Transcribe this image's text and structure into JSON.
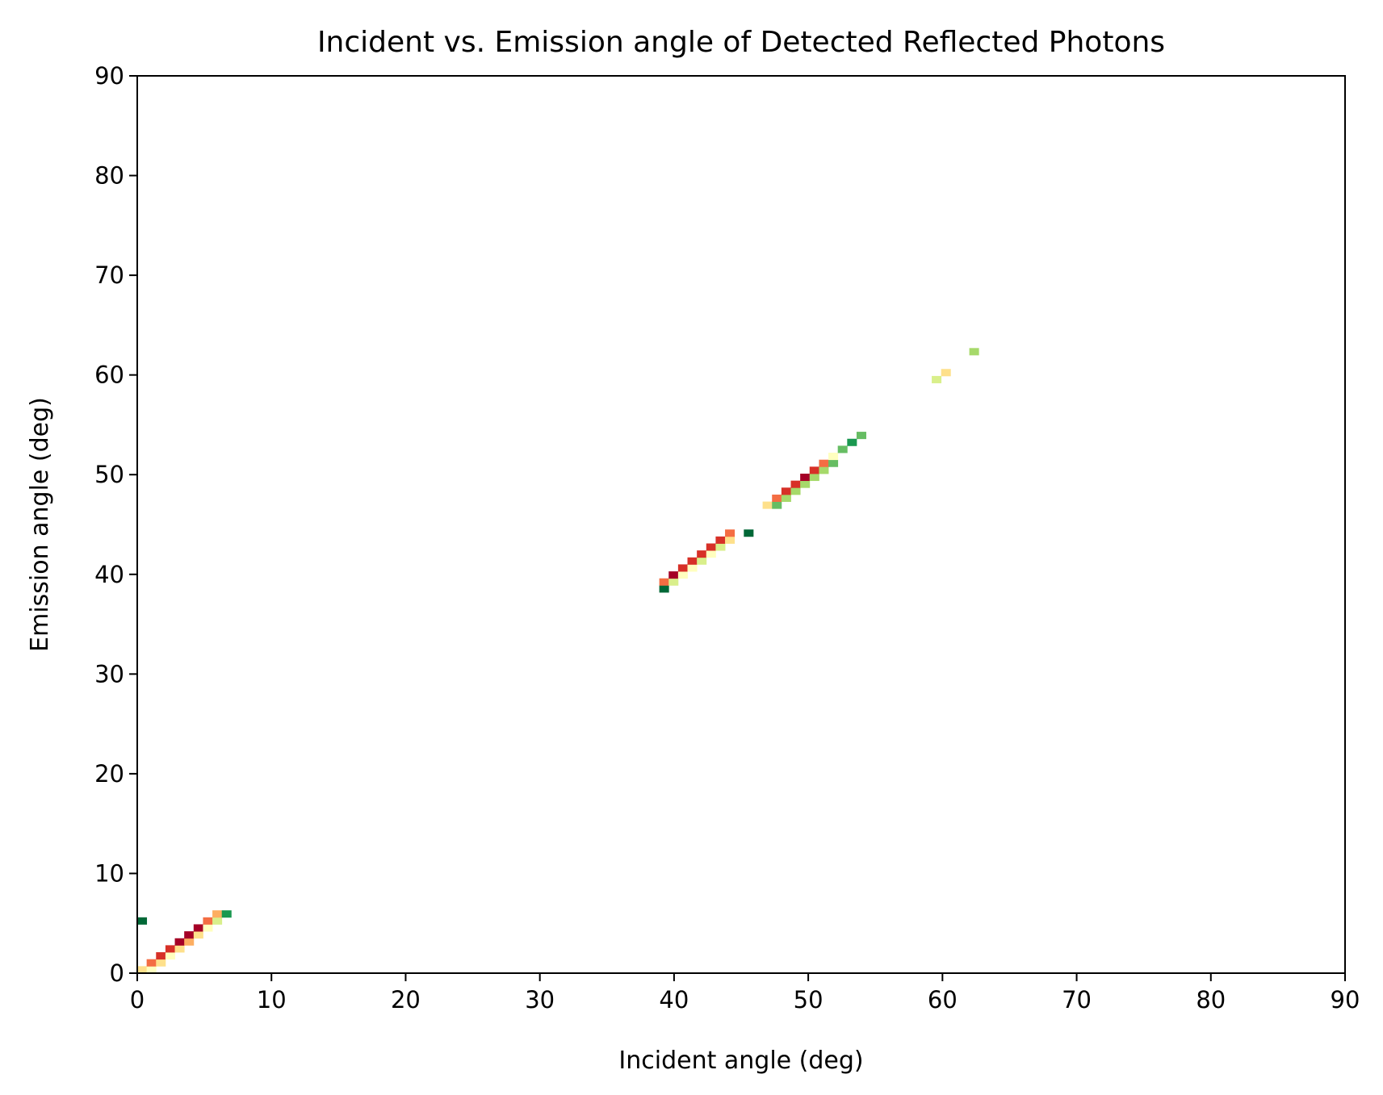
{
  "chart_data": {
    "type": "heatmap",
    "title": "Incident vs. Emission angle of Detected Reflected Photons",
    "xlabel": "Incident angle (deg)",
    "ylabel": "Emission angle (deg)",
    "xlim": [
      0,
      90
    ],
    "ylim": [
      0,
      90
    ],
    "xticks": [
      "0",
      "10",
      "20",
      "30",
      "40",
      "50",
      "60",
      "70",
      "80",
      "90"
    ],
    "yticks": [
      "0",
      "10",
      "20",
      "30",
      "40",
      "50",
      "60",
      "70",
      "80",
      "90"
    ],
    "grid": false,
    "colormap": "RdYlGn",
    "colors": {
      "background": "#ffffff",
      "axis": "#000000"
    },
    "bin_width": 0.7,
    "bins": [
      {
        "x": 0.0,
        "y": 0.0,
        "c": "#fee08b"
      },
      {
        "x": 0.7,
        "y": 0.0,
        "c": "#ffffbf"
      },
      {
        "x": 0.7,
        "y": 0.7,
        "c": "#f46d43"
      },
      {
        "x": 1.4,
        "y": 0.7,
        "c": "#fee08b"
      },
      {
        "x": 1.4,
        "y": 1.4,
        "c": "#d73027"
      },
      {
        "x": 2.1,
        "y": 1.4,
        "c": "#ffffbf"
      },
      {
        "x": 2.1,
        "y": 2.1,
        "c": "#d73027"
      },
      {
        "x": 2.8,
        "y": 2.1,
        "c": "#fee08b"
      },
      {
        "x": 2.8,
        "y": 2.8,
        "c": "#a50026"
      },
      {
        "x": 3.5,
        "y": 2.8,
        "c": "#fdae61"
      },
      {
        "x": 3.5,
        "y": 3.5,
        "c": "#a50026"
      },
      {
        "x": 4.2,
        "y": 3.5,
        "c": "#fee08b"
      },
      {
        "x": 4.2,
        "y": 4.2,
        "c": "#a50026"
      },
      {
        "x": 4.9,
        "y": 4.2,
        "c": "#ffffbf"
      },
      {
        "x": 4.9,
        "y": 4.9,
        "c": "#f46d43"
      },
      {
        "x": 5.6,
        "y": 4.9,
        "c": "#d9ef8b"
      },
      {
        "x": 5.6,
        "y": 5.6,
        "c": "#fdae61"
      },
      {
        "x": 6.3,
        "y": 5.6,
        "c": "#1a9850"
      },
      {
        "x": 0.0,
        "y": 4.9,
        "c": "#006837"
      },
      {
        "x": 38.9,
        "y": 38.2,
        "c": "#006837"
      },
      {
        "x": 38.9,
        "y": 38.9,
        "c": "#f46d43"
      },
      {
        "x": 39.6,
        "y": 38.9,
        "c": "#d9ef8b"
      },
      {
        "x": 39.6,
        "y": 39.6,
        "c": "#a50026"
      },
      {
        "x": 40.3,
        "y": 39.6,
        "c": "#ffffbf"
      },
      {
        "x": 40.3,
        "y": 40.3,
        "c": "#d73027"
      },
      {
        "x": 41.0,
        "y": 40.3,
        "c": "#ffffbf"
      },
      {
        "x": 41.0,
        "y": 41.0,
        "c": "#d73027"
      },
      {
        "x": 41.7,
        "y": 41.0,
        "c": "#d9ef8b"
      },
      {
        "x": 41.7,
        "y": 41.7,
        "c": "#d73027"
      },
      {
        "x": 42.4,
        "y": 41.7,
        "c": "#ffffbf"
      },
      {
        "x": 42.4,
        "y": 42.4,
        "c": "#d73027"
      },
      {
        "x": 43.1,
        "y": 42.4,
        "c": "#d9ef8b"
      },
      {
        "x": 43.1,
        "y": 43.1,
        "c": "#d73027"
      },
      {
        "x": 43.8,
        "y": 43.1,
        "c": "#fee08b"
      },
      {
        "x": 43.8,
        "y": 43.8,
        "c": "#f46d43"
      },
      {
        "x": 45.2,
        "y": 43.8,
        "c": "#006837"
      },
      {
        "x": 46.6,
        "y": 46.6,
        "c": "#fee08b"
      },
      {
        "x": 47.3,
        "y": 46.6,
        "c": "#66bd63"
      },
      {
        "x": 47.3,
        "y": 47.3,
        "c": "#f46d43"
      },
      {
        "x": 48.0,
        "y": 47.3,
        "c": "#a6d96a"
      },
      {
        "x": 48.0,
        "y": 48.0,
        "c": "#d73027"
      },
      {
        "x": 48.7,
        "y": 48.0,
        "c": "#a6d96a"
      },
      {
        "x": 48.7,
        "y": 48.7,
        "c": "#d73027"
      },
      {
        "x": 49.4,
        "y": 48.7,
        "c": "#a6d96a"
      },
      {
        "x": 49.4,
        "y": 49.4,
        "c": "#a50026"
      },
      {
        "x": 50.1,
        "y": 49.4,
        "c": "#a6d96a"
      },
      {
        "x": 50.1,
        "y": 50.1,
        "c": "#d73027"
      },
      {
        "x": 50.8,
        "y": 50.1,
        "c": "#a6d96a"
      },
      {
        "x": 50.8,
        "y": 50.8,
        "c": "#f46d43"
      },
      {
        "x": 51.5,
        "y": 50.8,
        "c": "#66bd63"
      },
      {
        "x": 51.5,
        "y": 51.5,
        "c": "#ffffbf"
      },
      {
        "x": 52.2,
        "y": 52.2,
        "c": "#66bd63"
      },
      {
        "x": 52.9,
        "y": 52.9,
        "c": "#1a9850"
      },
      {
        "x": 53.6,
        "y": 53.6,
        "c": "#66bd63"
      },
      {
        "x": 59.2,
        "y": 59.2,
        "c": "#d9ef8b"
      },
      {
        "x": 59.9,
        "y": 59.9,
        "c": "#fee08b"
      },
      {
        "x": 62.0,
        "y": 62.0,
        "c": "#a6d96a"
      }
    ]
  }
}
